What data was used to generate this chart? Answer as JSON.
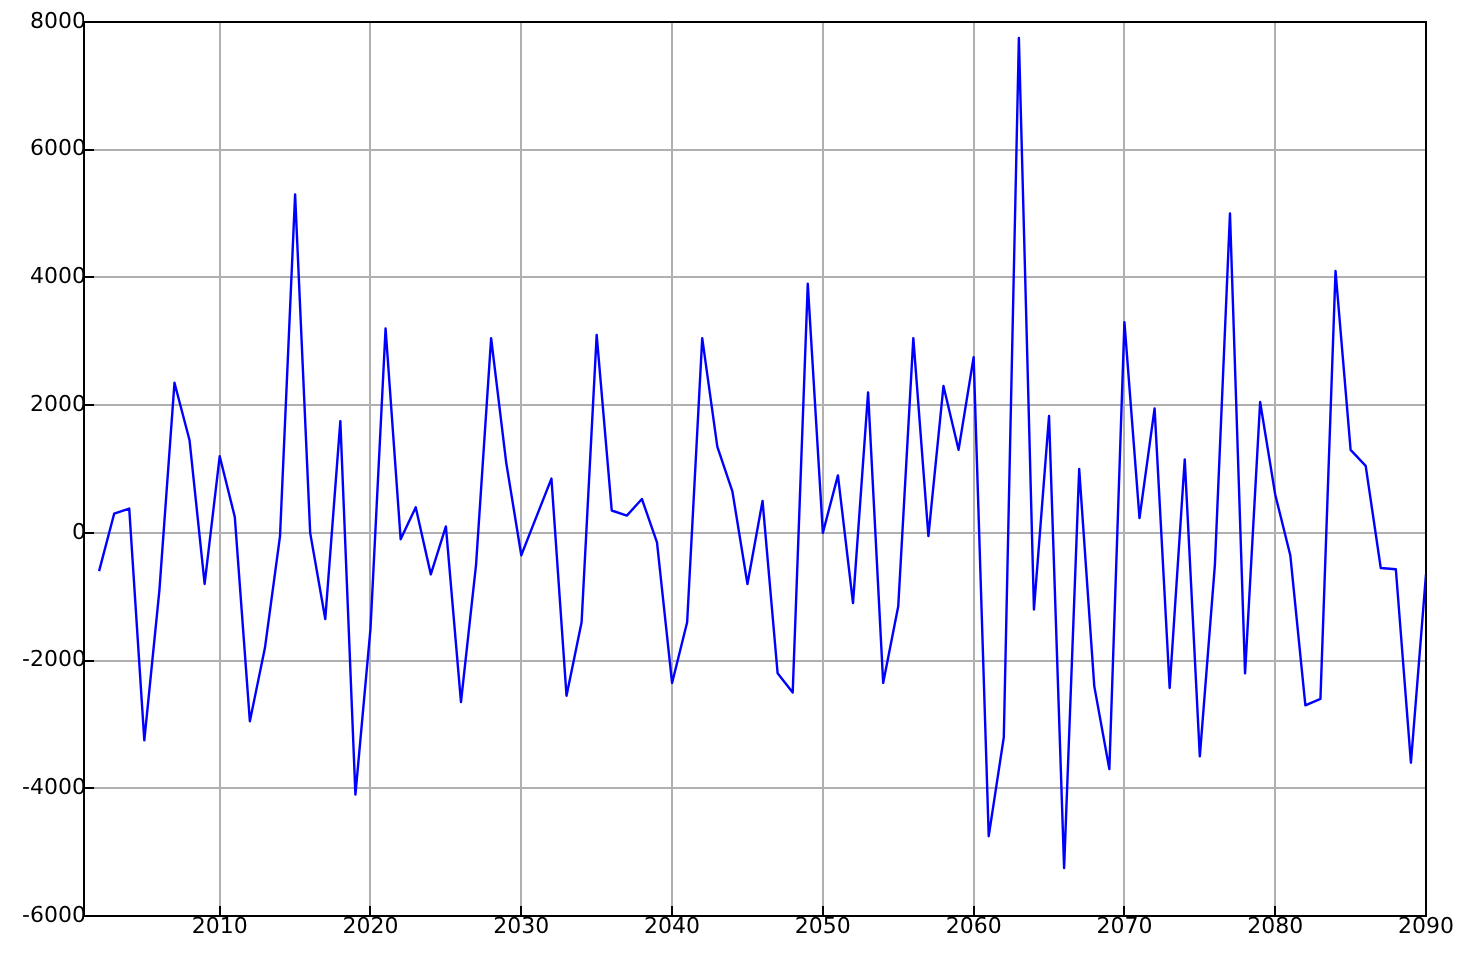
{
  "chart_data": {
    "type": "line",
    "x": [
      2002,
      2003,
      2004,
      2005,
      2006,
      2007,
      2008,
      2009,
      2010,
      2011,
      2012,
      2013,
      2014,
      2015,
      2016,
      2017,
      2018,
      2019,
      2020,
      2021,
      2022,
      2023,
      2024,
      2025,
      2026,
      2027,
      2028,
      2029,
      2030,
      2031,
      2032,
      2033,
      2034,
      2035,
      2036,
      2037,
      2038,
      2039,
      2040,
      2041,
      2042,
      2043,
      2044,
      2045,
      2046,
      2047,
      2048,
      2049,
      2050,
      2051,
      2052,
      2053,
      2054,
      2055,
      2056,
      2057,
      2058,
      2059,
      2060,
      2061,
      2062,
      2063,
      2064,
      2065,
      2066,
      2067,
      2068,
      2069,
      2070,
      2071,
      2072,
      2073,
      2074,
      2075,
      2076,
      2077,
      2078,
      2079,
      2080,
      2081,
      2082,
      2083,
      2084,
      2085,
      2086,
      2087,
      2088,
      2089,
      2090
    ],
    "series": [
      {
        "color": "#0000ff",
        "values": [
          -600,
          300,
          380,
          -3250,
          -900,
          2350,
          1450,
          -800,
          1200,
          250,
          -2950,
          -1800,
          -50,
          5300,
          0,
          -1350,
          1750,
          -4100,
          -1500,
          3200,
          -100,
          400,
          -650,
          100,
          -2650,
          -500,
          3050,
          1100,
          -350,
          250,
          850,
          -2550,
          -1400,
          3100,
          350,
          270,
          530,
          -150,
          -2350,
          -1400,
          3050,
          1350,
          650,
          -800,
          500,
          -2200,
          -2500,
          3900,
          0,
          900,
          -1100,
          2200,
          -2350,
          -1150,
          3050,
          -50,
          2300,
          1300,
          2750,
          -4750,
          -3200,
          7750,
          -1200,
          1830,
          -5250,
          1000,
          -2400,
          -3700,
          3300,
          230,
          1950,
          -2430,
          1150,
          -3500,
          -500,
          5000,
          -2200,
          2050,
          600,
          -350,
          -2700,
          -2600,
          4100,
          1300,
          1050,
          -550,
          -570,
          -3600,
          -650
        ]
      }
    ],
    "xlim": [
      2001,
      2090
    ],
    "xticks": [
      2010,
      2020,
      2030,
      2040,
      2050,
      2060,
      2070,
      2080,
      2090
    ],
    "ylim": [
      -6000,
      8000
    ],
    "yticks": [
      -6000,
      -4000,
      -2000,
      0,
      2000,
      4000,
      6000,
      8000
    ],
    "grid": true,
    "marker": "none",
    "line_style": "solid",
    "legend": false
  }
}
